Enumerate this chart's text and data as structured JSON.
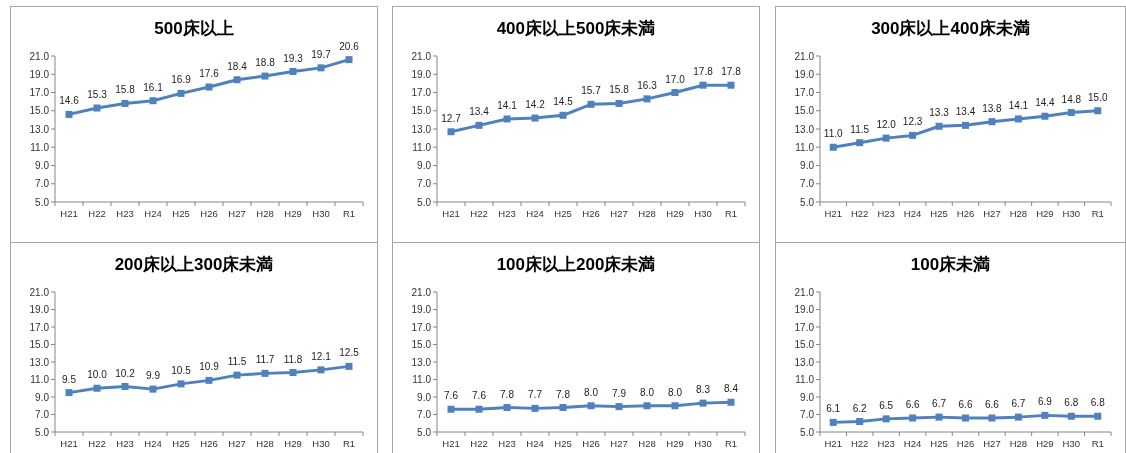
{
  "chart_data": [
    {
      "type": "line",
      "title": "500床以上",
      "categories": [
        "H21",
        "H22",
        "H23",
        "H24",
        "H25",
        "H26",
        "H27",
        "H28",
        "H29",
        "H30",
        "R1"
      ],
      "values": [
        14.6,
        15.3,
        15.8,
        16.1,
        16.9,
        17.6,
        18.4,
        18.8,
        19.3,
        19.7,
        20.6
      ],
      "value_labels": [
        "14.6",
        "15.3",
        "15.8",
        "16.1",
        "16.9",
        "17.6",
        "18.4",
        "18.8",
        "19.3",
        "19.7",
        "20.6"
      ],
      "color": "#4f81bd",
      "marker": "square",
      "ylim": [
        5,
        21
      ],
      "yticks": [
        {
          "value": 5,
          "label": "5.0"
        },
        {
          "value": 7,
          "label": "7.0"
        },
        {
          "value": 9,
          "label": "9.0"
        },
        {
          "value": 11,
          "label": "11.0"
        },
        {
          "value": 13,
          "label": "13.0"
        },
        {
          "value": 15,
          "label": "15.0"
        },
        {
          "value": 17,
          "label": "17.0"
        },
        {
          "value": 19,
          "label": "19.0"
        },
        {
          "value": 21,
          "label": "21.0"
        }
      ]
    },
    {
      "type": "line",
      "title": "400床以上500床未満",
      "categories": [
        "H21",
        "H22",
        "H23",
        "H24",
        "H25",
        "H26",
        "H27",
        "H28",
        "H29",
        "H30",
        "R1"
      ],
      "values": [
        12.7,
        13.4,
        14.1,
        14.2,
        14.5,
        15.7,
        15.8,
        16.3,
        17.0,
        17.8,
        17.8
      ],
      "value_labels": [
        "12.7",
        "13.4",
        "14.1",
        "14.2",
        "14.5",
        "15.7",
        "15.8",
        "16.3",
        "17.0",
        "17.8",
        "17.8"
      ],
      "color": "#4f81bd",
      "marker": "square",
      "ylim": [
        5,
        21
      ],
      "yticks": [
        {
          "value": 5,
          "label": "5.0"
        },
        {
          "value": 7,
          "label": "7.0"
        },
        {
          "value": 9,
          "label": "9.0"
        },
        {
          "value": 11,
          "label": "11.0"
        },
        {
          "value": 13,
          "label": "13.0"
        },
        {
          "value": 15,
          "label": "15.0"
        },
        {
          "value": 17,
          "label": "17.0"
        },
        {
          "value": 19,
          "label": "19.0"
        },
        {
          "value": 21,
          "label": "21.0"
        }
      ]
    },
    {
      "type": "line",
      "title": "300床以上400床未満",
      "categories": [
        "H21",
        "H22",
        "H23",
        "H24",
        "H25",
        "H26",
        "H27",
        "H28",
        "H29",
        "H30",
        "R1"
      ],
      "values": [
        11.0,
        11.5,
        12.0,
        12.3,
        13.3,
        13.4,
        13.8,
        14.1,
        14.4,
        14.8,
        15.0
      ],
      "value_labels": [
        "11.0",
        "11.5",
        "12.0",
        "12.3",
        "13.3",
        "13.4",
        "13.8",
        "14.1",
        "14.4",
        "14.8",
        "15.0"
      ],
      "color": "#4f81bd",
      "marker": "square",
      "ylim": [
        5,
        21
      ],
      "yticks": [
        {
          "value": 5,
          "label": "5.0"
        },
        {
          "value": 7,
          "label": "7.0"
        },
        {
          "value": 9,
          "label": "9.0"
        },
        {
          "value": 11,
          "label": "11.0"
        },
        {
          "value": 13,
          "label": "13.0"
        },
        {
          "value": 15,
          "label": "15.0"
        },
        {
          "value": 17,
          "label": "17.0"
        },
        {
          "value": 19,
          "label": "19.0"
        },
        {
          "value": 21,
          "label": "21.0"
        }
      ]
    },
    {
      "type": "line",
      "title": "200床以上300床未満",
      "categories": [
        "H21",
        "H22",
        "H23",
        "H24",
        "H25",
        "H26",
        "H27",
        "H28",
        "H29",
        "H30",
        "R1"
      ],
      "values": [
        9.5,
        10.0,
        10.2,
        9.9,
        10.5,
        10.9,
        11.5,
        11.7,
        11.8,
        12.1,
        12.5
      ],
      "value_labels": [
        "9.5",
        "10.0",
        "10.2",
        "9.9",
        "10.5",
        "10.9",
        "11.5",
        "11.7",
        "11.8",
        "12.1",
        "12.5"
      ],
      "color": "#4f81bd",
      "marker": "square",
      "ylim": [
        5,
        21
      ],
      "yticks": [
        {
          "value": 5,
          "label": "5.0"
        },
        {
          "value": 7,
          "label": "7.0"
        },
        {
          "value": 9,
          "label": "9.0"
        },
        {
          "value": 11,
          "label": "11.0"
        },
        {
          "value": 13,
          "label": "13.0"
        },
        {
          "value": 15,
          "label": "15.0"
        },
        {
          "value": 17,
          "label": "17.0"
        },
        {
          "value": 19,
          "label": "19.0"
        },
        {
          "value": 21,
          "label": "21.0"
        }
      ]
    },
    {
      "type": "line",
      "title": "100床以上200床未満",
      "categories": [
        "H21",
        "H22",
        "H23",
        "H24",
        "H25",
        "H26",
        "H27",
        "H28",
        "H29",
        "H30",
        "R1"
      ],
      "values": [
        7.6,
        7.6,
        7.8,
        7.7,
        7.8,
        8.0,
        7.9,
        8.0,
        8.0,
        8.3,
        8.4
      ],
      "value_labels": [
        "7.6",
        "7.6",
        "7.8",
        "7.7",
        "7.8",
        "8.0",
        "7.9",
        "8.0",
        "8.0",
        "8.3",
        "8.4"
      ],
      "color": "#4f81bd",
      "marker": "square",
      "ylim": [
        5,
        21
      ],
      "yticks": [
        {
          "value": 5,
          "label": "5.0"
        },
        {
          "value": 7,
          "label": "7.0"
        },
        {
          "value": 9,
          "label": "9.0"
        },
        {
          "value": 11,
          "label": "11.0"
        },
        {
          "value": 13,
          "label": "13.0"
        },
        {
          "value": 15,
          "label": "15.0"
        },
        {
          "value": 17,
          "label": "17.0"
        },
        {
          "value": 19,
          "label": "19.0"
        },
        {
          "value": 21,
          "label": "21.0"
        }
      ]
    },
    {
      "type": "line",
      "title": "100床未満",
      "categories": [
        "H21",
        "H22",
        "H23",
        "H24",
        "H25",
        "H26",
        "H27",
        "H28",
        "H29",
        "H30",
        "R1"
      ],
      "values": [
        6.1,
        6.2,
        6.5,
        6.6,
        6.7,
        6.6,
        6.6,
        6.7,
        6.9,
        6.8,
        6.8
      ],
      "value_labels": [
        "6.1",
        "6.2",
        "6.5",
        "6.6",
        "6.7",
        "6.6",
        "6.6",
        "6.7",
        "6.9",
        "6.8",
        "6.8"
      ],
      "color": "#4f81bd",
      "marker": "square",
      "ylim": [
        5,
        21
      ],
      "yticks": [
        {
          "value": 5,
          "label": "5.0"
        },
        {
          "value": 7,
          "label": "7.0"
        },
        {
          "value": 9,
          "label": "9.0"
        },
        {
          "value": 11,
          "label": "11.0"
        },
        {
          "value": 13,
          "label": "13.0"
        },
        {
          "value": 15,
          "label": "15.0"
        },
        {
          "value": 17,
          "label": "17.0"
        },
        {
          "value": 19,
          "label": "19.0"
        },
        {
          "value": 21,
          "label": "21.0"
        }
      ]
    }
  ]
}
